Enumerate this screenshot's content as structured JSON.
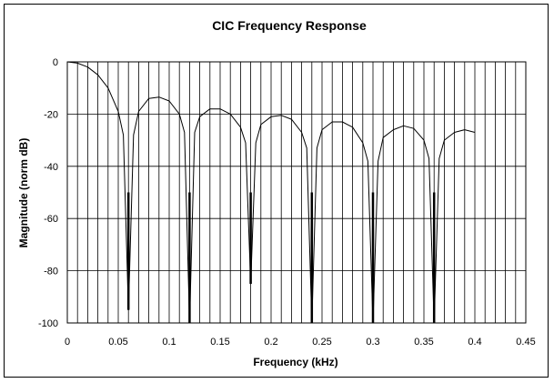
{
  "chart_data": {
    "type": "line",
    "title": "CIC Frequency Response",
    "xlabel": "Frequency (kHz)",
    "ylabel": "Magnitude (norm dB)",
    "xlim": [
      0,
      0.45
    ],
    "ylim": [
      -100,
      0
    ],
    "x_ticks": [
      "0",
      "0.05",
      "0.1",
      "0.15",
      "0.2",
      "0.25",
      "0.3",
      "0.35",
      "0.4",
      "0.45"
    ],
    "y_ticks": [
      "0",
      "-20",
      "-40",
      "-60",
      "-80",
      "-100"
    ],
    "grid": {
      "horizontal": true,
      "vertical": true,
      "vertical_minor_step": 0.01
    },
    "legend": "none",
    "series": [
      {
        "color": "#000000",
        "x": [
          0,
          0.01,
          0.02,
          0.03,
          0.04,
          0.05,
          0.055,
          0.06,
          0.065,
          0.07,
          0.08,
          0.09,
          0.1,
          0.11,
          0.115,
          0.12,
          0.125,
          0.13,
          0.14,
          0.15,
          0.16,
          0.17,
          0.175,
          0.18,
          0.185,
          0.19,
          0.2,
          0.21,
          0.22,
          0.23,
          0.235,
          0.24,
          0.245,
          0.25,
          0.26,
          0.27,
          0.28,
          0.29,
          0.295,
          0.3,
          0.305,
          0.31,
          0.32,
          0.33,
          0.34,
          0.35,
          0.355,
          0.36,
          0.365,
          0.37,
          0.38,
          0.39,
          0.4
        ],
        "y": [
          0,
          -0.5,
          -2,
          -5,
          -10,
          -19,
          -28,
          -95,
          -28,
          -19,
          -14,
          -13.5,
          -15,
          -20,
          -27,
          -100,
          -27,
          -21,
          -18,
          -18,
          -20,
          -25,
          -31,
          -85,
          -31,
          -24,
          -21,
          -20.5,
          -22,
          -27,
          -33,
          -100,
          -33,
          -26,
          -23,
          -23,
          -25,
          -31,
          -38,
          -100,
          -38,
          -29,
          -26,
          -24.5,
          -25.5,
          -30,
          -37,
          -100,
          -37,
          -30,
          -27,
          -26,
          -27
        ]
      }
    ]
  }
}
